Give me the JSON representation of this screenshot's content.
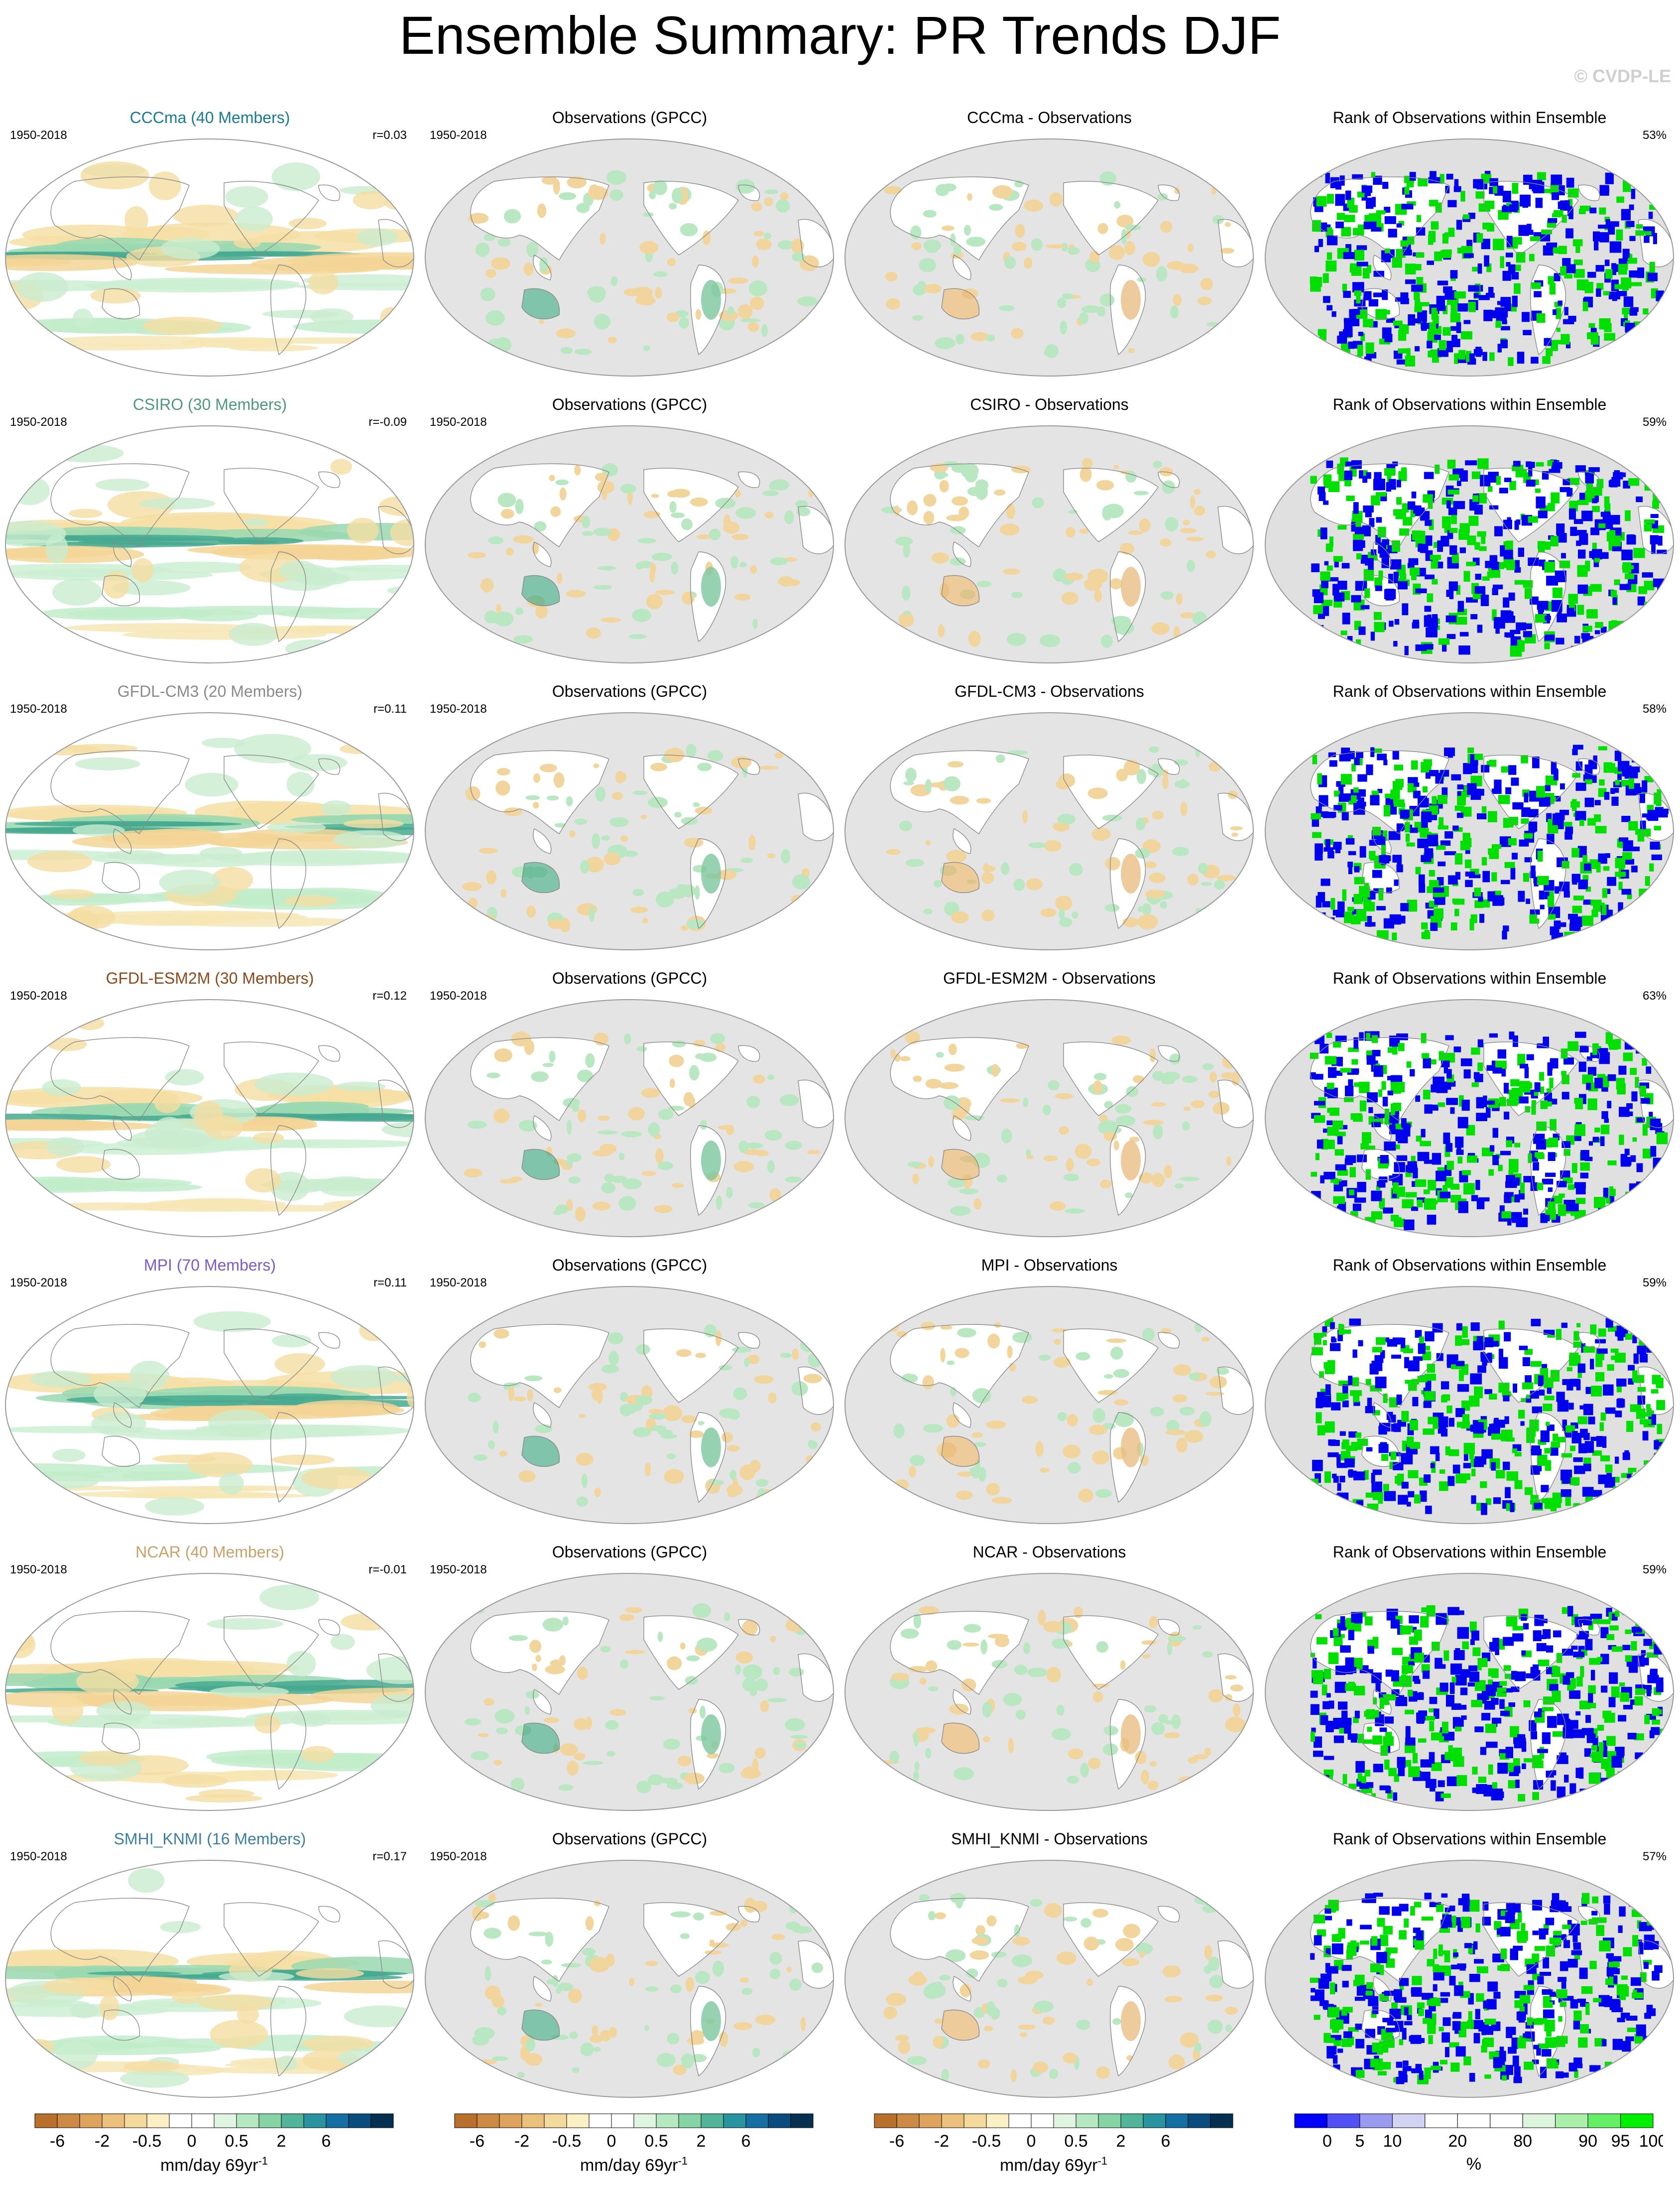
{
  "title": "Ensemble Summary: PR Trends DJF",
  "watermark": "© CVDP-LE",
  "period": "1950-2018",
  "obs_title": "Observations (GPCC)",
  "rank_title": "Rank of Observations within Ensemble",
  "rows": [
    {
      "model_title": "CCCma (40 Members)",
      "color": "#1a7a94",
      "r": "r=0.03",
      "diff_title": "CCCma - Observations",
      "rank_pct": "53%"
    },
    {
      "model_title": "CSIRO (30 Members)",
      "color": "#4f9a7a",
      "r": "r=-0.09",
      "diff_title": "CSIRO - Observations",
      "rank_pct": "59%"
    },
    {
      "model_title": "GFDL-CM3 (20 Members)",
      "color": "#8a8a8a",
      "r": "r=0.11",
      "diff_title": "GFDL-CM3 - Observations",
      "rank_pct": "58%"
    },
    {
      "model_title": "GFDL-ESM2M (30 Members)",
      "color": "#8b4a1c",
      "r": "r=0.12",
      "diff_title": "GFDL-ESM2M - Observations",
      "rank_pct": "63%"
    },
    {
      "model_title": "MPI (70 Members)",
      "color": "#7d5bc4",
      "r": "r=0.11",
      "diff_title": "MPI - Observations",
      "rank_pct": "59%"
    },
    {
      "model_title": "NCAR (40 Members)",
      "color": "#c9a26b",
      "r": "r=-0.01",
      "diff_title": "NCAR - Observations",
      "rank_pct": "59%"
    },
    {
      "model_title": "SMHI_KNMI (16 Members)",
      "color": "#3d7f9e",
      "r": "r=0.17",
      "diff_title": "SMHI_KNMI - Observations",
      "rank_pct": "57%"
    }
  ],
  "pr_colorbar": {
    "colors": [
      "#b8702c",
      "#cc8a45",
      "#de a45e",
      "#ebc07c",
      "#f4d99c",
      "#fbefc4",
      "#ffffff",
      "#ffffff",
      "#dff5e2",
      "#b5e8c0",
      "#86d4a6",
      "#52b59a",
      "#2a93a0",
      "#156fa3",
      "#0a4c7d",
      "#06304f"
    ],
    "labels": [
      "-6",
      "-2",
      "-0.5",
      "0",
      "0.5",
      "2",
      "6"
    ],
    "units": "mm/day 69yr",
    "units_sup": "-1"
  },
  "rank_colorbar": {
    "colors": [
      "#0000ff",
      "#5050f5",
      "#9a9af0",
      "#d2d2f5",
      "#ffffff",
      "#ffffff",
      "#ffffff",
      "#dcf5dc",
      "#aaf0aa",
      "#66ee66",
      "#00ee00"
    ],
    "labels": [
      "0",
      "5",
      "10",
      "20",
      "80",
      "90",
      "95",
      "100"
    ],
    "units": "%"
  }
}
